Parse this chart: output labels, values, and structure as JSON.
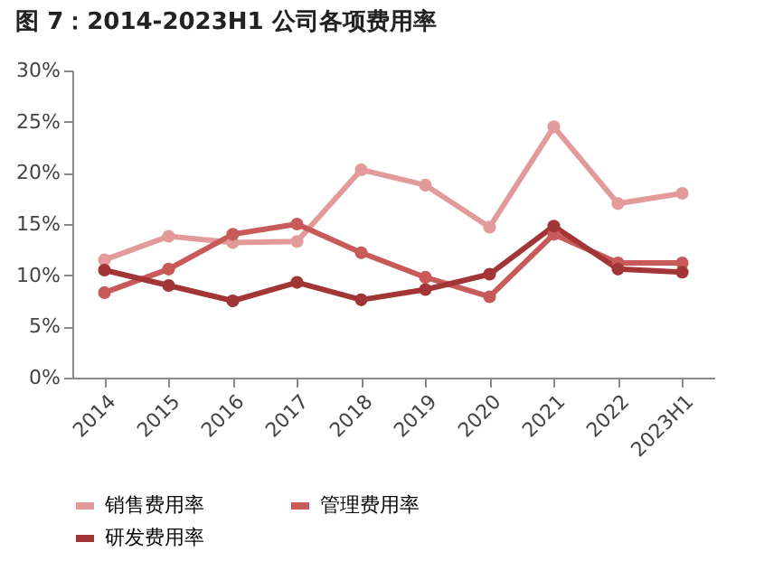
{
  "chart_data": {
    "type": "line",
    "title": "图 7：2014-2023H1 公司各项费用率",
    "categories": [
      "2014",
      "2015",
      "2016",
      "2017",
      "2018",
      "2019",
      "2020",
      "2021",
      "2022",
      "2023H1"
    ],
    "series": [
      {
        "name": "销售费用率",
        "color": "#e39a9a",
        "values": [
          11.5,
          13.8,
          13.2,
          13.3,
          20.3,
          18.8,
          14.7,
          24.5,
          17.0,
          18.0
        ]
      },
      {
        "name": "管理费用率",
        "color": "#c85a5a",
        "values": [
          8.3,
          10.6,
          14.0,
          15.0,
          12.2,
          9.8,
          7.9,
          14.0,
          11.2,
          11.2
        ]
      },
      {
        "name": "研发费用率",
        "color": "#a23535",
        "values": [
          10.5,
          9.0,
          7.5,
          9.3,
          7.6,
          8.6,
          10.1,
          14.8,
          10.6,
          10.3
        ]
      }
    ],
    "ylim": [
      0,
      30
    ],
    "yticks": [
      {
        "value": 0,
        "label": "0%"
      },
      {
        "value": 5,
        "label": "5%"
      },
      {
        "value": 10,
        "label": "10%"
      },
      {
        "value": 15,
        "label": "15%"
      },
      {
        "value": 20,
        "label": "20%"
      },
      {
        "value": 25,
        "label": "25%"
      },
      {
        "value": 30,
        "label": "30%"
      }
    ],
    "grid": false,
    "legend": "bottom",
    "marker": "circle",
    "line_style": "solid"
  }
}
